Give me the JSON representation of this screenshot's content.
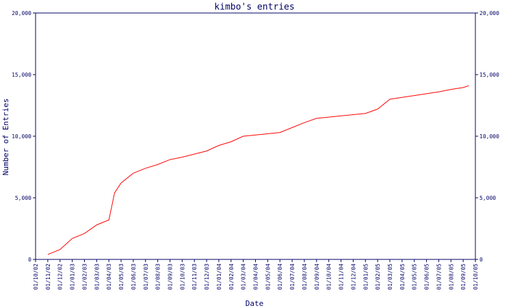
{
  "chart_data": {
    "type": "line",
    "title": "kimbo's entries",
    "xlabel": "Date",
    "ylabel": "Number of Entries",
    "ylim": [
      0,
      20000
    ],
    "y_ticks": [
      0,
      5000,
      10000,
      15000,
      20000
    ],
    "y_tick_labels": [
      "0",
      "5,000",
      "10,000",
      "15,000",
      "20,000"
    ],
    "x_tick_labels": [
      "01/10/02",
      "01/11/02",
      "01/12/02",
      "01/01/03",
      "01/02/03",
      "01/03/03",
      "01/04/03",
      "01/05/03",
      "01/06/03",
      "01/07/03",
      "01/08/03",
      "01/09/03",
      "01/10/03",
      "01/11/03",
      "01/12/03",
      "01/01/04",
      "01/02/04",
      "01/03/04",
      "01/04/04",
      "01/05/04",
      "01/06/04",
      "01/07/04",
      "01/08/04",
      "01/09/04",
      "01/10/04",
      "01/11/04",
      "01/12/04",
      "01/01/05",
      "01/02/05",
      "01/03/05",
      "01/04/05",
      "01/05/05",
      "01/06/05",
      "01/07/05",
      "01/08/05",
      "01/09/05",
      "01/10/05"
    ],
    "grid": false,
    "line_color": "#ff0000",
    "axis_color": "#000066",
    "series": [
      {
        "x": [
          "2002-11-01",
          "2002-12-01",
          "2003-01-01",
          "2003-02-01",
          "2003-03-01",
          "2003-04-01",
          "2003-04-15",
          "2003-05-01",
          "2003-06-01",
          "2003-07-01",
          "2003-08-01",
          "2003-09-01",
          "2003-10-01",
          "2003-11-01",
          "2003-12-01",
          "2004-01-01",
          "2004-02-01",
          "2004-03-01",
          "2004-04-01",
          "2004-05-01",
          "2004-06-01",
          "2004-07-01",
          "2004-08-01",
          "2004-09-01",
          "2004-10-01",
          "2004-11-01",
          "2004-12-01",
          "2005-01-01",
          "2005-02-01",
          "2005-03-01",
          "2005-04-01",
          "2005-05-01",
          "2005-06-01",
          "2005-07-01",
          "2005-08-01",
          "2005-09-01",
          "2005-09-15"
        ],
        "values": [
          400,
          800,
          1700,
          2100,
          2800,
          3200,
          5400,
          6200,
          7000,
          7400,
          7700,
          8100,
          8300,
          8550,
          8800,
          9250,
          9550,
          10000,
          10100,
          10200,
          10300,
          10700,
          11100,
          11450,
          11550,
          11650,
          11750,
          11850,
          12200,
          13000,
          13150,
          13300,
          13450,
          13600,
          13800,
          13950,
          14100
        ]
      }
    ]
  }
}
